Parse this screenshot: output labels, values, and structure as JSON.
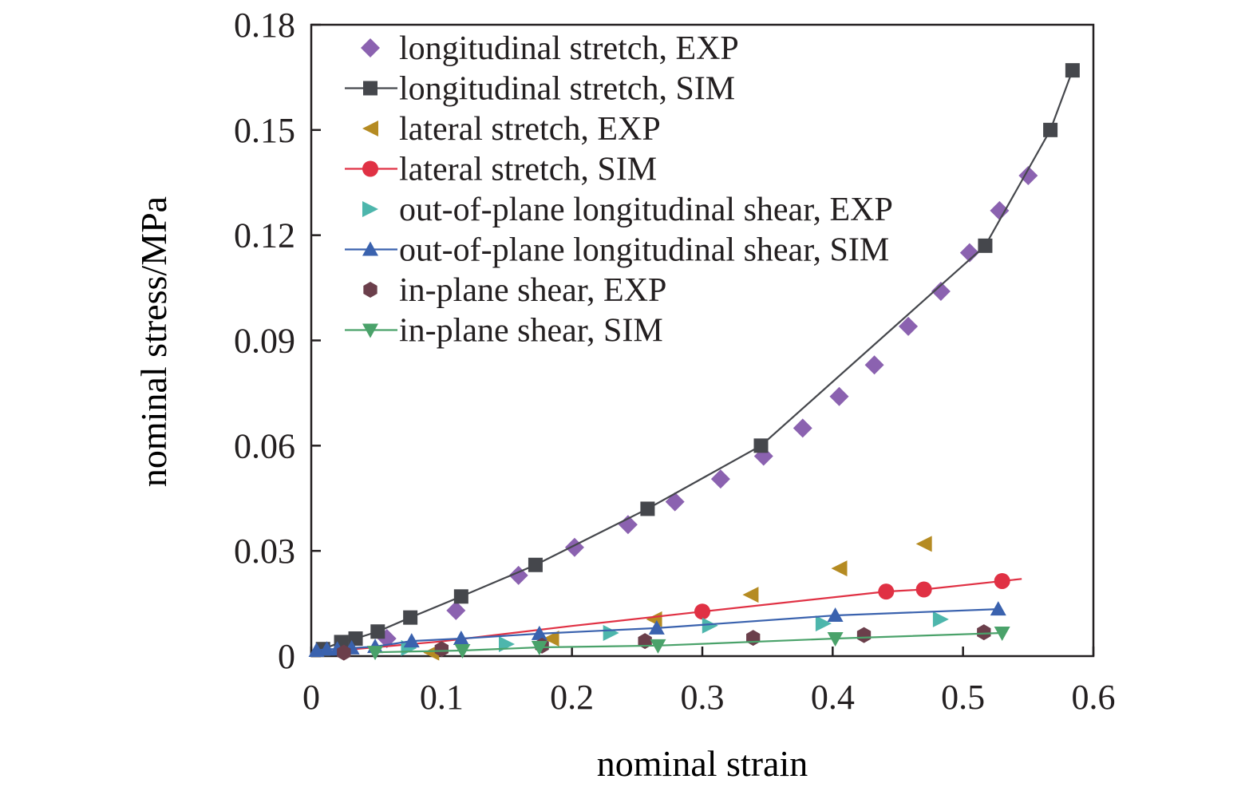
{
  "chart_data": {
    "type": "scatter",
    "title": "",
    "xlabel": "nominal strain",
    "ylabel": "nominal stress/MPa",
    "xlim": [
      0,
      0.6
    ],
    "ylim": [
      0,
      0.18
    ],
    "xticks": [
      "0",
      "0.1",
      "0.2",
      "0.3",
      "0.4",
      "0.5",
      "0.6"
    ],
    "yticks": [
      "0",
      "0.03",
      "0.06",
      "0.09",
      "0.12",
      "0.15",
      "0.18"
    ],
    "grid": false,
    "legend_placement": "top-left",
    "series": [
      {
        "name": "longitudinal stretch, EXP",
        "color": "#8b62b0",
        "marker": "diamond",
        "line": false,
        "x": [
          0.058,
          0.111,
          0.159,
          0.202,
          0.243,
          0.279,
          0.314,
          0.347,
          0.377,
          0.405,
          0.432,
          0.458,
          0.483,
          0.505,
          0.528,
          0.55
        ],
        "y": [
          0.005,
          0.013,
          0.023,
          0.031,
          0.0375,
          0.044,
          0.0505,
          0.057,
          0.065,
          0.074,
          0.083,
          0.094,
          0.104,
          0.115,
          0.127,
          0.137
        ]
      },
      {
        "name": "longitudinal stretch, SIM",
        "color": "#45474c",
        "marker": "square",
        "line": true,
        "x": [
          0.009,
          0.023,
          0.034,
          0.051,
          0.076,
          0.115,
          0.172,
          0.258,
          0.345,
          0.517,
          0.567,
          0.584
        ],
        "y": [
          0.002,
          0.004,
          0.005,
          0.007,
          0.011,
          0.017,
          0.026,
          0.042,
          0.06,
          0.117,
          0.15,
          0.167
        ]
      },
      {
        "name": "lateral stretch, EXP",
        "color": "#b58b22",
        "marker": "triangle-left",
        "line": false,
        "x": [
          0.092,
          0.184,
          0.263,
          0.337,
          0.405,
          0.47
        ],
        "y": [
          0.001,
          0.005,
          0.0105,
          0.0175,
          0.025,
          0.032
        ]
      },
      {
        "name": "lateral stretch, SIM",
        "color": "#e03144",
        "marker": "circle",
        "line": true,
        "x": [
          0.3,
          0.441,
          0.47,
          0.53
        ],
        "y": [
          0.0127,
          0.0184,
          0.019,
          0.0214
        ],
        "line_x": [
          0.003,
          0.1,
          0.2,
          0.3,
          0.441,
          0.47,
          0.53,
          0.545
        ],
        "line_y": [
          0.001,
          0.0042,
          0.0086,
          0.0127,
          0.0184,
          0.019,
          0.0214,
          0.022
        ]
      },
      {
        "name": "out-of-plane longitudinal shear, EXP",
        "color": "#4db6ac",
        "marker": "triangle-right",
        "line": false,
        "x": [
          0.075,
          0.15,
          0.23,
          0.306,
          0.393,
          0.483
        ],
        "y": [
          0.0023,
          0.0034,
          0.0066,
          0.0087,
          0.0093,
          0.0105
        ]
      },
      {
        "name": "out-of-plane longitudinal shear, SIM",
        "color": "#3a62ae",
        "marker": "triangle-up",
        "line": true,
        "x": [
          0.004,
          0.012,
          0.02,
          0.031,
          0.049,
          0.077,
          0.115,
          0.175,
          0.265,
          0.402,
          0.527
        ],
        "y": [
          0.0016,
          0.002,
          0.002,
          0.0023,
          0.0027,
          0.0043,
          0.005,
          0.0064,
          0.008,
          0.0116,
          0.0134
        ]
      },
      {
        "name": "in-plane shear, EXP",
        "color": "#6b3f4b",
        "marker": "hexagon",
        "line": false,
        "x": [
          0.025,
          0.1,
          0.177,
          0.256,
          0.339,
          0.424,
          0.516
        ],
        "y": [
          0.001,
          0.002,
          0.003,
          0.0043,
          0.0052,
          0.006,
          0.0068
        ]
      },
      {
        "name": "in-plane shear, SIM",
        "color": "#4aa26a",
        "marker": "triangle-down",
        "line": true,
        "x": [
          0.049,
          0.116,
          0.175,
          0.266,
          0.402,
          0.53
        ],
        "y": [
          0.0011,
          0.0016,
          0.0025,
          0.003,
          0.005,
          0.0066
        ]
      }
    ]
  }
}
